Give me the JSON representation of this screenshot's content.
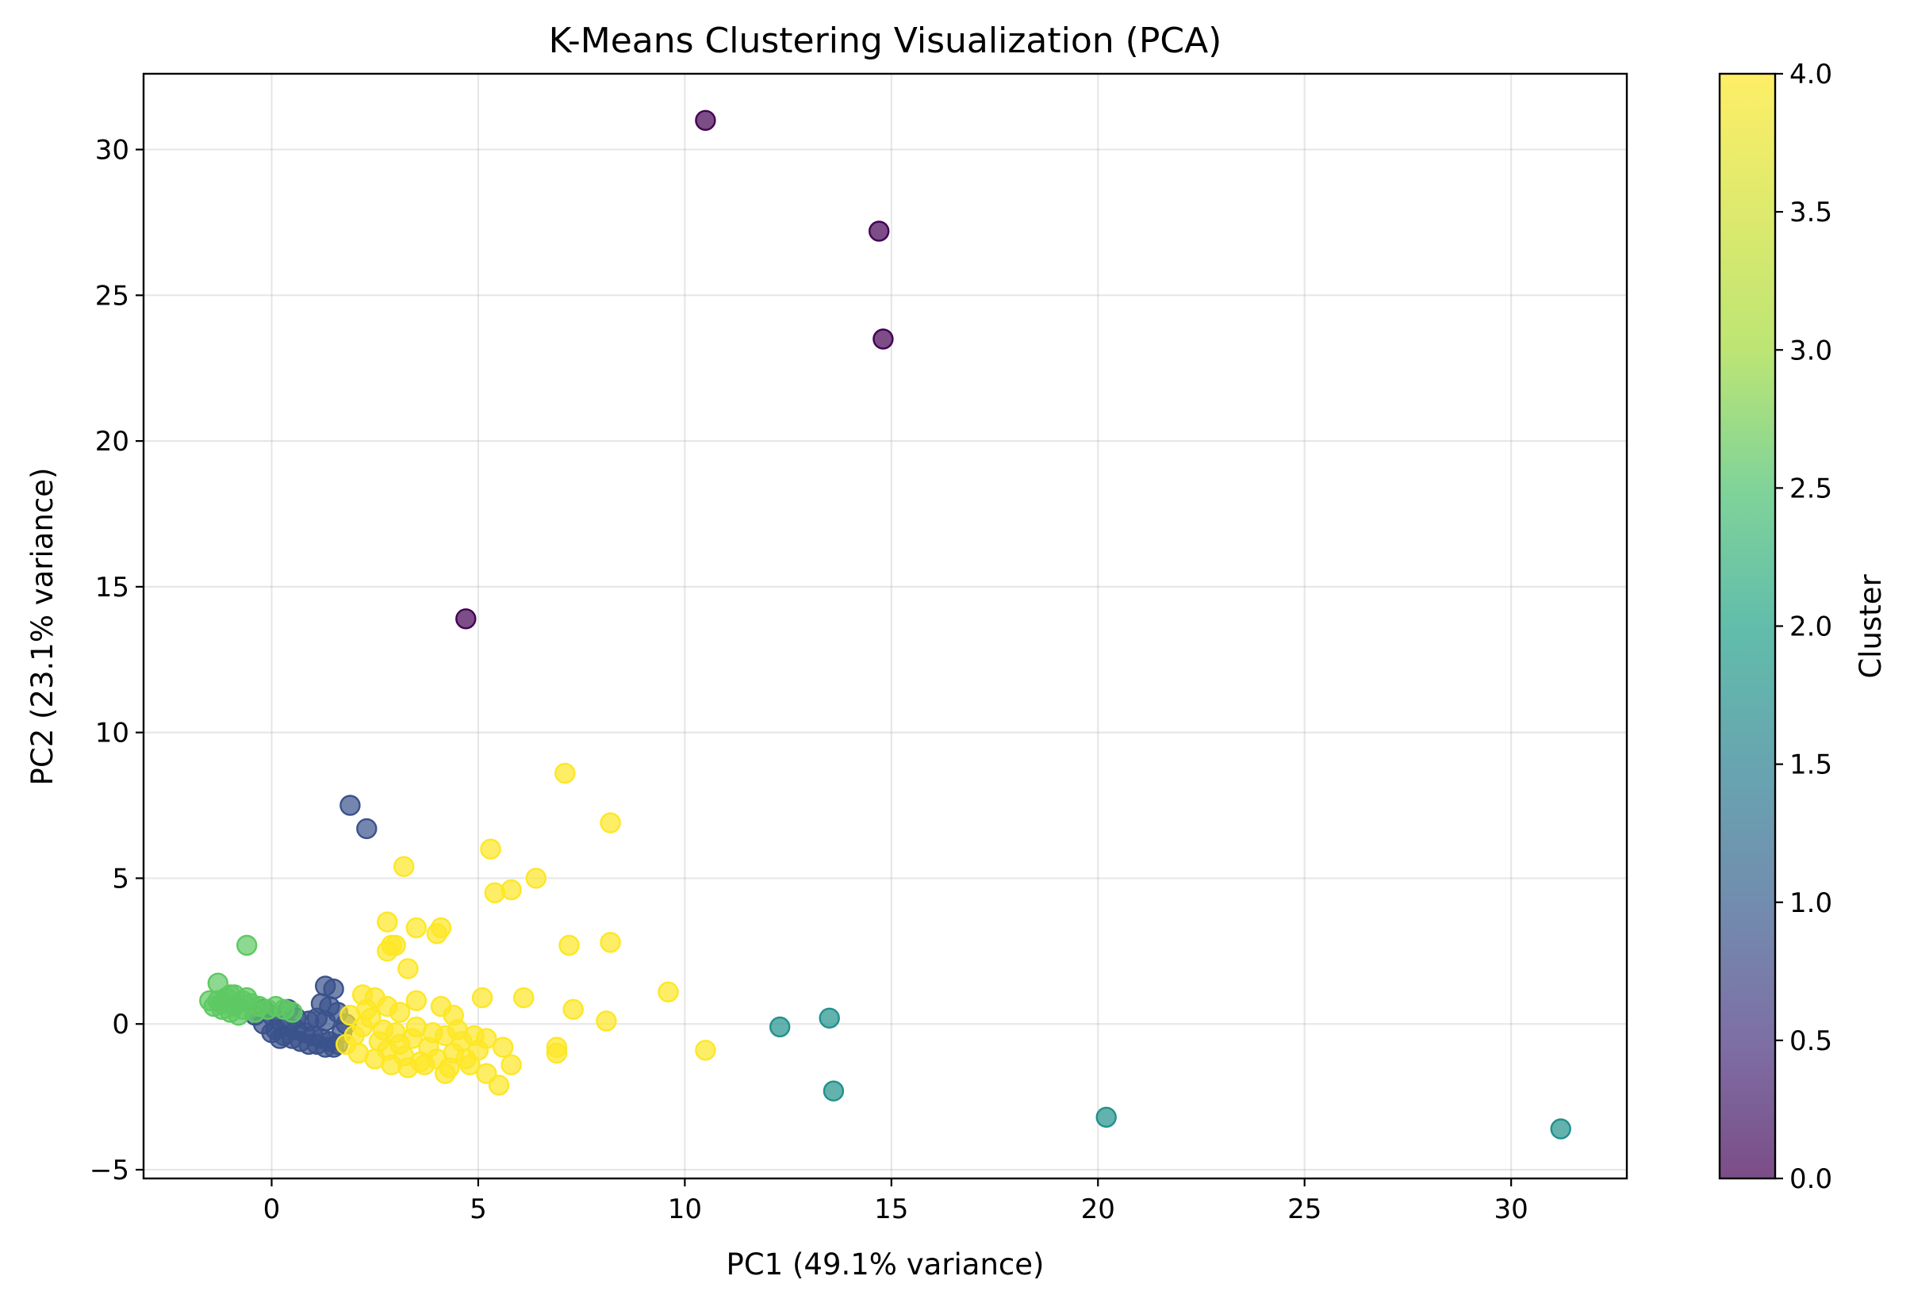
{
  "chart_data": {
    "type": "scatter",
    "title": "K-Means Clustering Visualization (PCA)",
    "xlabel": "PC1 (49.1% variance)",
    "ylabel": "PC2 (23.1% variance)",
    "xlim": [
      -3.1,
      32.8
    ],
    "ylim": [
      -5.3,
      32.6
    ],
    "xticks": [
      0,
      5,
      10,
      15,
      20,
      25,
      30
    ],
    "yticks": [
      -5,
      0,
      5,
      10,
      15,
      20,
      25,
      30
    ],
    "xtick_labels": [
      "0",
      "5",
      "10",
      "15",
      "20",
      "25",
      "30"
    ],
    "ytick_labels": [
      "−5",
      "0",
      "5",
      "10",
      "15",
      "20",
      "25",
      "30"
    ],
    "grid": true,
    "colormap": "viridis",
    "colorbar": {
      "label": "Cluster",
      "range": [
        0.0,
        4.0
      ],
      "ticks": [
        0.0,
        0.5,
        1.0,
        1.5,
        2.0,
        2.5,
        3.0,
        3.5,
        4.0
      ],
      "tick_labels": [
        "0.0",
        "0.5",
        "1.0",
        "1.5",
        "2.0",
        "2.5",
        "3.0",
        "3.5",
        "4.0"
      ]
    },
    "cluster_colors": [
      "#440154",
      "#3b528b",
      "#21918c",
      "#5ec962",
      "#fde725"
    ],
    "series": [
      {
        "cluster": 0,
        "points": [
          [
            10.5,
            31.0
          ],
          [
            14.7,
            27.2
          ],
          [
            14.8,
            23.5
          ],
          [
            4.7,
            13.9
          ]
        ]
      },
      {
        "cluster": 1,
        "points": [
          [
            1.9,
            7.5
          ],
          [
            2.3,
            6.7
          ],
          [
            1.3,
            1.3
          ],
          [
            1.5,
            1.2
          ],
          [
            1.2,
            0.7
          ],
          [
            1.4,
            0.6
          ],
          [
            -0.2,
            0.5
          ],
          [
            0.0,
            0.3
          ],
          [
            0.2,
            0.1
          ],
          [
            0.4,
            -0.1
          ],
          [
            0.6,
            -0.2
          ],
          [
            0.8,
            -0.3
          ],
          [
            1.0,
            -0.4
          ],
          [
            1.2,
            -0.5
          ],
          [
            1.4,
            -0.6
          ],
          [
            1.6,
            -0.7
          ],
          [
            0.1,
            -0.2
          ],
          [
            0.3,
            -0.4
          ],
          [
            0.5,
            -0.5
          ],
          [
            0.7,
            -0.6
          ],
          [
            0.9,
            -0.7
          ],
          [
            1.1,
            -0.7
          ],
          [
            1.3,
            -0.8
          ],
          [
            1.5,
            -0.8
          ],
          [
            -0.4,
            0.3
          ],
          [
            -0.2,
            0.0
          ],
          [
            0.0,
            -0.3
          ],
          [
            0.2,
            -0.5
          ],
          [
            0.6,
            0.2
          ],
          [
            0.9,
            0.1
          ],
          [
            1.1,
            0.2
          ],
          [
            1.3,
            0.1
          ],
          [
            1.6,
            0.4
          ],
          [
            1.8,
            0.0
          ],
          [
            1.7,
            -0.3
          ],
          [
            0.4,
            0.5
          ]
        ]
      },
      {
        "cluster": 2,
        "points": [
          [
            12.3,
            -0.1
          ],
          [
            13.5,
            0.2
          ],
          [
            13.6,
            -2.3
          ],
          [
            20.2,
            -3.2
          ],
          [
            31.2,
            -3.6
          ]
        ]
      },
      {
        "cluster": 3,
        "points": [
          [
            -0.6,
            2.7
          ],
          [
            -1.3,
            1.4
          ],
          [
            -1.5,
            0.8
          ],
          [
            -1.4,
            0.6
          ],
          [
            -1.2,
            0.5
          ],
          [
            -1.0,
            0.4
          ],
          [
            -0.8,
            0.3
          ],
          [
            -1.3,
            0.8
          ],
          [
            -1.1,
            0.9
          ],
          [
            -0.9,
            1.0
          ],
          [
            -0.7,
            0.8
          ],
          [
            -0.5,
            0.7
          ],
          [
            -0.3,
            0.6
          ],
          [
            -0.1,
            0.5
          ],
          [
            0.1,
            0.6
          ],
          [
            0.3,
            0.5
          ],
          [
            0.5,
            0.4
          ],
          [
            -1.0,
            1.0
          ],
          [
            -0.6,
            0.9
          ],
          [
            -1.2,
            0.7
          ],
          [
            -0.9,
            0.6
          ],
          [
            -0.7,
            0.5
          ],
          [
            -0.4,
            0.4
          ]
        ]
      },
      {
        "cluster": 4,
        "points": [
          [
            7.1,
            8.6
          ],
          [
            8.2,
            6.9
          ],
          [
            5.3,
            6.0
          ],
          [
            3.2,
            5.4
          ],
          [
            6.4,
            5.0
          ],
          [
            5.8,
            4.6
          ],
          [
            5.4,
            4.5
          ],
          [
            2.8,
            3.5
          ],
          [
            3.5,
            3.3
          ],
          [
            4.1,
            3.3
          ],
          [
            4.0,
            3.1
          ],
          [
            2.9,
            2.7
          ],
          [
            3.0,
            2.7
          ],
          [
            7.2,
            2.7
          ],
          [
            8.2,
            2.8
          ],
          [
            2.8,
            2.5
          ],
          [
            3.3,
            1.9
          ],
          [
            9.6,
            1.1
          ],
          [
            5.1,
            0.9
          ],
          [
            6.1,
            0.9
          ],
          [
            7.3,
            0.5
          ],
          [
            8.1,
            0.1
          ],
          [
            10.5,
            -0.9
          ],
          [
            6.9,
            -0.8
          ],
          [
            6.9,
            -1.0
          ],
          [
            5.8,
            -1.4
          ],
          [
            5.5,
            -2.1
          ],
          [
            5.2,
            -1.7
          ],
          [
            4.2,
            -1.7
          ],
          [
            5.6,
            -0.8
          ],
          [
            2.2,
            1.0
          ],
          [
            2.5,
            0.9
          ],
          [
            2.8,
            0.6
          ],
          [
            3.1,
            0.4
          ],
          [
            3.5,
            0.8
          ],
          [
            4.1,
            0.6
          ],
          [
            4.4,
            0.3
          ],
          [
            1.8,
            -0.7
          ],
          [
            2.0,
            -0.4
          ],
          [
            2.2,
            -0.1
          ],
          [
            2.4,
            0.2
          ],
          [
            2.6,
            -0.6
          ],
          [
            2.8,
            -0.9
          ],
          [
            3.0,
            -0.3
          ],
          [
            3.2,
            -1.1
          ],
          [
            3.4,
            -0.5
          ],
          [
            3.6,
            -1.3
          ],
          [
            3.8,
            -0.8
          ],
          [
            4.0,
            -1.2
          ],
          [
            4.2,
            -0.4
          ],
          [
            4.4,
            -1.0
          ],
          [
            4.6,
            -0.6
          ],
          [
            4.8,
            -1.4
          ],
          [
            5.0,
            -0.9
          ],
          [
            5.2,
            -0.5
          ],
          [
            2.1,
            -1.0
          ],
          [
            2.5,
            -1.2
          ],
          [
            2.9,
            -1.4
          ],
          [
            3.3,
            -1.5
          ],
          [
            3.7,
            -1.4
          ],
          [
            4.3,
            -1.5
          ],
          [
            4.7,
            -1.2
          ],
          [
            1.9,
            0.3
          ],
          [
            2.3,
            0.5
          ],
          [
            2.7,
            -0.2
          ],
          [
            3.1,
            -0.7
          ],
          [
            3.5,
            -0.1
          ],
          [
            3.9,
            -0.3
          ],
          [
            4.5,
            -0.2
          ],
          [
            4.9,
            -0.4
          ]
        ]
      }
    ]
  }
}
